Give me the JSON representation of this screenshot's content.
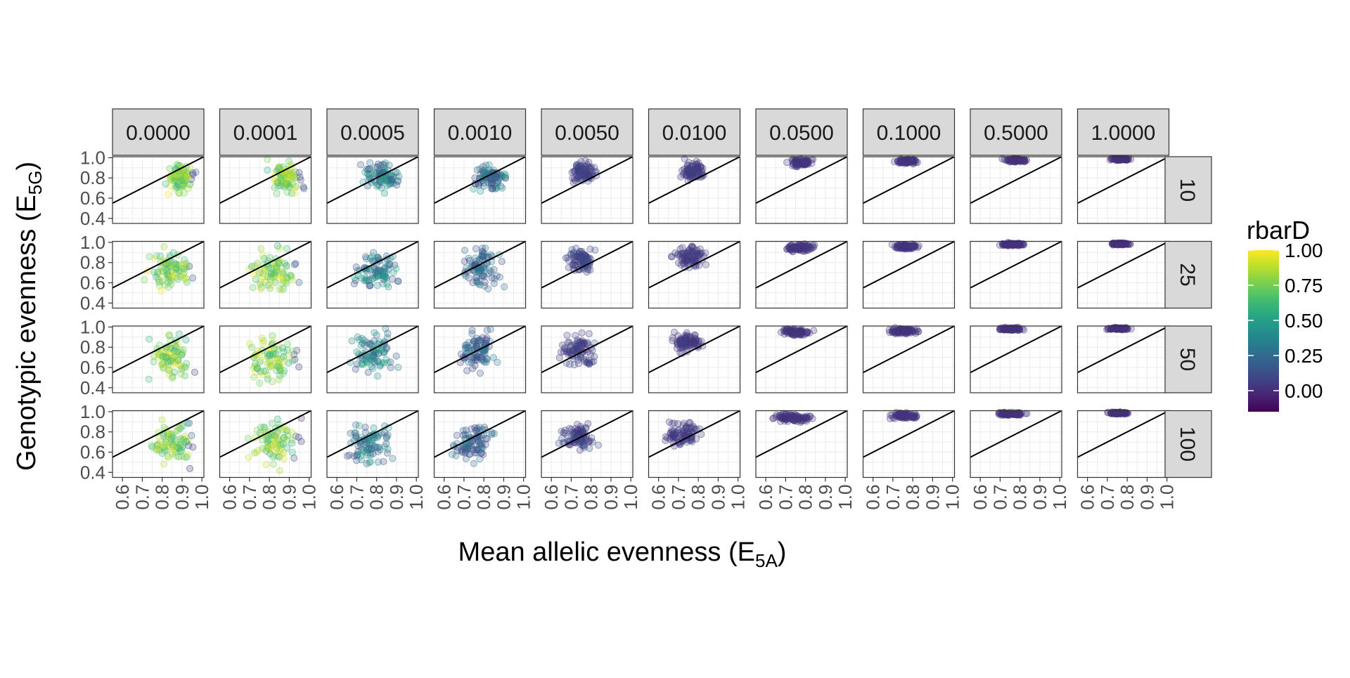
{
  "chart_data": {
    "type": "scatter",
    "xlabel": "Mean allelic evenness (E",
    "xlabel_sub": "5A",
    "xlabel_close": ")",
    "ylabel": "Genotypic evenness (E",
    "ylabel_sub": "5G",
    "ylabel_close": ")",
    "col_facets": [
      "0.0000",
      "0.0001",
      "0.0005",
      "0.0010",
      "0.0050",
      "0.0100",
      "0.0500",
      "0.1000",
      "0.5000",
      "1.0000"
    ],
    "row_facets": [
      "10",
      "25",
      "50",
      "100"
    ],
    "x_ticks": [
      0.6,
      0.7,
      0.8,
      0.9,
      1.0
    ],
    "x_tick_labels": [
      "0.6",
      "0.7",
      "0.8",
      "0.9",
      "1.0"
    ],
    "y_ticks": [
      0.4,
      0.6,
      0.8,
      1.0
    ],
    "y_tick_labels": [
      "0.4",
      "0.6",
      "0.8",
      "1.0"
    ],
    "xlim": [
      0.55,
      1.01
    ],
    "ylim": [
      0.35,
      1.01
    ],
    "reference_line": "y = x",
    "grid": true,
    "legend": {
      "title": "rbarD",
      "position": "right",
      "ticks": [
        1.0,
        0.75,
        0.5,
        0.25,
        0.0
      ],
      "tick_labels": [
        "1.00",
        "0.75",
        "0.50",
        "0.25",
        "0.00"
      ],
      "range": [
        -0.15,
        1.0
      ],
      "colormap": "viridis"
    },
    "point_opacity": 0.25,
    "panel_summary": [
      {
        "row": "10",
        "cols": [
          {
            "x": [
              0.8,
              0.98
            ],
            "y": [
              0.6,
              1.0
            ],
            "rbarD": [
              0.0,
              1.0
            ]
          },
          {
            "x": [
              0.77,
              0.99
            ],
            "y": [
              0.6,
              1.0
            ],
            "rbarD": [
              0.0,
              1.0
            ]
          },
          {
            "x": [
              0.7,
              0.95
            ],
            "y": [
              0.63,
              1.0
            ],
            "rbarD": [
              0.1,
              0.6
            ]
          },
          {
            "x": [
              0.72,
              0.93
            ],
            "y": [
              0.62,
              1.0
            ],
            "rbarD": [
              0.05,
              0.55
            ]
          },
          {
            "x": [
              0.68,
              0.85
            ],
            "y": [
              0.72,
              1.0
            ],
            "rbarD": [
              0.0,
              0.15
            ]
          },
          {
            "x": [
              0.69,
              0.86
            ],
            "y": [
              0.75,
              1.0
            ],
            "rbarD": [
              0.0,
              0.1
            ]
          },
          {
            "x": [
              0.7,
              0.85
            ],
            "y": [
              0.9,
              1.0
            ],
            "rbarD": [
              0.0,
              0.05
            ]
          },
          {
            "x": [
              0.7,
              0.84
            ],
            "y": [
              0.93,
              1.0
            ],
            "rbarD": [
              0.0,
              0.05
            ]
          },
          {
            "x": [
              0.7,
              0.85
            ],
            "y": [
              0.95,
              1.0
            ],
            "rbarD": [
              0.0,
              0.03
            ]
          },
          {
            "x": [
              0.7,
              0.83
            ],
            "y": [
              0.97,
              1.0
            ],
            "rbarD": [
              0.0,
              0.02
            ]
          }
        ]
      },
      {
        "row": "25",
        "cols": [
          {
            "x": [
              0.7,
              0.99
            ],
            "y": [
              0.45,
              1.0
            ],
            "rbarD": [
              0.0,
              1.0
            ]
          },
          {
            "x": [
              0.65,
              0.99
            ],
            "y": [
              0.42,
              1.0
            ],
            "rbarD": [
              0.0,
              1.0
            ]
          },
          {
            "x": [
              0.65,
              0.95
            ],
            "y": [
              0.45,
              1.0
            ],
            "rbarD": [
              0.1,
              0.6
            ]
          },
          {
            "x": [
              0.65,
              0.92
            ],
            "y": [
              0.5,
              1.0
            ],
            "rbarD": [
              0.05,
              0.4
            ]
          },
          {
            "x": [
              0.65,
              0.85
            ],
            "y": [
              0.65,
              1.0
            ],
            "rbarD": [
              0.0,
              0.15
            ]
          },
          {
            "x": [
              0.66,
              0.85
            ],
            "y": [
              0.72,
              1.0
            ],
            "rbarD": [
              0.0,
              0.1
            ]
          },
          {
            "x": [
              0.68,
              0.86
            ],
            "y": [
              0.9,
              1.0
            ],
            "rbarD": [
              0.0,
              0.05
            ]
          },
          {
            "x": [
              0.68,
              0.85
            ],
            "y": [
              0.92,
              1.0
            ],
            "rbarD": [
              0.0,
              0.05
            ]
          },
          {
            "x": [
              0.68,
              0.85
            ],
            "y": [
              0.96,
              1.0
            ],
            "rbarD": [
              0.0,
              0.03
            ]
          },
          {
            "x": [
              0.7,
              0.83
            ],
            "y": [
              0.97,
              1.0
            ],
            "rbarD": [
              0.0,
              0.02
            ]
          }
        ]
      },
      {
        "row": "50",
        "cols": [
          {
            "x": [
              0.7,
              0.99
            ],
            "y": [
              0.4,
              1.0
            ],
            "rbarD": [
              0.0,
              1.0
            ]
          },
          {
            "x": [
              0.65,
              0.99
            ],
            "y": [
              0.4,
              1.0
            ],
            "rbarD": [
              0.0,
              1.0
            ]
          },
          {
            "x": [
              0.62,
              0.95
            ],
            "y": [
              0.45,
              1.0
            ],
            "rbarD": [
              0.1,
              0.6
            ]
          },
          {
            "x": [
              0.63,
              0.9
            ],
            "y": [
              0.5,
              1.0
            ],
            "rbarD": [
              0.05,
              0.35
            ]
          },
          {
            "x": [
              0.63,
              0.85
            ],
            "y": [
              0.55,
              0.98
            ],
            "rbarD": [
              0.0,
              0.15
            ]
          },
          {
            "x": [
              0.63,
              0.85
            ],
            "y": [
              0.72,
              0.98
            ],
            "rbarD": [
              0.0,
              0.1
            ]
          },
          {
            "x": [
              0.65,
              0.86
            ],
            "y": [
              0.9,
              1.0
            ],
            "rbarD": [
              0.0,
              0.05
            ]
          },
          {
            "x": [
              0.66,
              0.85
            ],
            "y": [
              0.92,
              1.0
            ],
            "rbarD": [
              0.0,
              0.05
            ]
          },
          {
            "x": [
              0.66,
              0.85
            ],
            "y": [
              0.96,
              1.0
            ],
            "rbarD": [
              0.0,
              0.03
            ]
          },
          {
            "x": [
              0.68,
              0.83
            ],
            "y": [
              0.97,
              1.0
            ],
            "rbarD": [
              0.0,
              0.02
            ]
          }
        ]
      },
      {
        "row": "100",
        "cols": [
          {
            "x": [
              0.7,
              0.99
            ],
            "y": [
              0.4,
              1.0
            ],
            "rbarD": [
              0.0,
              1.0
            ]
          },
          {
            "x": [
              0.65,
              0.99
            ],
            "y": [
              0.4,
              1.0
            ],
            "rbarD": [
              0.0,
              1.0
            ]
          },
          {
            "x": [
              0.6,
              0.93
            ],
            "y": [
              0.4,
              0.95
            ],
            "rbarD": [
              0.1,
              0.55
            ]
          },
          {
            "x": [
              0.6,
              0.88
            ],
            "y": [
              0.45,
              0.95
            ],
            "rbarD": [
              0.05,
              0.35
            ]
          },
          {
            "x": [
              0.62,
              0.85
            ],
            "y": [
              0.55,
              0.95
            ],
            "rbarD": [
              0.0,
              0.15
            ]
          },
          {
            "x": [
              0.6,
              0.85
            ],
            "y": [
              0.6,
              0.95
            ],
            "rbarD": [
              0.0,
              0.1
            ]
          },
          {
            "x": [
              0.6,
              0.88
            ],
            "y": [
              0.88,
              1.0
            ],
            "rbarD": [
              0.0,
              0.05
            ]
          },
          {
            "x": [
              0.66,
              0.86
            ],
            "y": [
              0.92,
              1.0
            ],
            "rbarD": [
              0.0,
              0.05
            ]
          },
          {
            "x": [
              0.66,
              0.85
            ],
            "y": [
              0.96,
              1.0
            ],
            "rbarD": [
              0.0,
              0.03
            ]
          },
          {
            "x": [
              0.68,
              0.83
            ],
            "y": [
              0.97,
              1.0
            ],
            "rbarD": [
              0.0,
              0.02
            ]
          }
        ]
      }
    ]
  }
}
